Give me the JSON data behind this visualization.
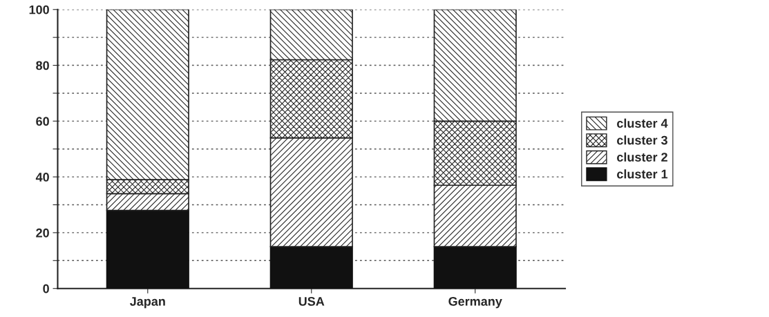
{
  "chart_data": {
    "type": "bar",
    "stacked": true,
    "categories": [
      "Japan",
      "USA",
      "Germany"
    ],
    "series": [
      {
        "name": "cluster 1",
        "color": "#111111",
        "values": [
          28,
          15,
          15
        ]
      },
      {
        "name": "cluster 2",
        "color": "#222222",
        "values": [
          6,
          39,
          22
        ]
      },
      {
        "name": "cluster 3",
        "color": "#222222",
        "values": [
          5,
          28,
          23
        ]
      },
      {
        "name": "cluster 4",
        "color": "#222222",
        "values": [
          61,
          18,
          40
        ]
      }
    ],
    "ylim": [
      0,
      100
    ],
    "yticks": [
      0,
      {
        "value": 10,
        "label": null
      },
      20,
      {
        "value": 30,
        "label": null
      },
      40,
      {
        "value": 50,
        "label": null
      },
      60,
      {
        "value": 70,
        "label": null
      },
      80,
      {
        "value": 90,
        "label": null
      },
      100
    ],
    "grid": "y",
    "legend": "right"
  }
}
